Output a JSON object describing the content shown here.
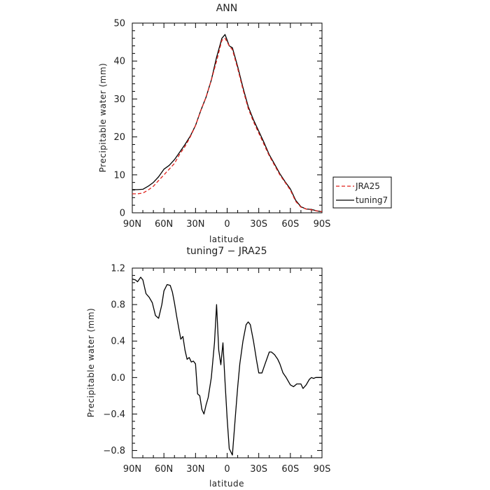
{
  "chart_data": [
    {
      "type": "line",
      "title": "ANN",
      "xlabel": "latitude",
      "ylabel": "Precipitable water (mm)",
      "xticks": [
        "90N",
        "60N",
        "30N",
        "0",
        "30S",
        "60S",
        "90S"
      ],
      "yticks": [
        "0",
        "10",
        "20",
        "30",
        "40",
        "50"
      ],
      "ylim": [
        0,
        50
      ],
      "legend_position": "right-of-plot",
      "series": [
        {
          "name": "JRA25",
          "color": "#e0201b",
          "dash": "dashed",
          "x": [
            90,
            85,
            80,
            75,
            70,
            65,
            60,
            55,
            50,
            45,
            40,
            35,
            30,
            25,
            20,
            15,
            10,
            5,
            2,
            0,
            -2,
            -5,
            -10,
            -15,
            -20,
            -25,
            -30,
            -35,
            -40,
            -45,
            -50,
            -55,
            -60,
            -65,
            -70,
            -75,
            -80,
            -85,
            -90
          ],
          "y": [
            5.0,
            5.0,
            5.2,
            6.0,
            7.0,
            8.5,
            10.0,
            11.5,
            13.0,
            15.5,
            17.5,
            20.0,
            23.0,
            27.0,
            30.5,
            35.0,
            40.0,
            45.5,
            46.0,
            45.0,
            44.0,
            43.0,
            38.0,
            32.5,
            27.5,
            24.0,
            21.0,
            18.0,
            15.0,
            12.5,
            10.0,
            8.0,
            6.0,
            3.0,
            1.5,
            1.0,
            0.8,
            0.5,
            0.3
          ]
        },
        {
          "name": "tuning7",
          "color": "#000000",
          "dash": "solid",
          "x": [
            90,
            85,
            80,
            75,
            70,
            65,
            60,
            55,
            50,
            45,
            40,
            35,
            30,
            25,
            20,
            15,
            10,
            5,
            2,
            0,
            -2,
            -5,
            -10,
            -15,
            -20,
            -25,
            -30,
            -35,
            -40,
            -45,
            -50,
            -55,
            -60,
            -65,
            -70,
            -75,
            -80,
            -85,
            -90
          ],
          "y": [
            6.1,
            6.1,
            6.2,
            7.0,
            8.0,
            9.5,
            11.5,
            12.5,
            14.0,
            16.0,
            18.0,
            20.2,
            23.0,
            27.0,
            30.5,
            35.0,
            41.0,
            46.0,
            47.0,
            45.5,
            44.0,
            43.5,
            38.5,
            33.0,
            28.0,
            24.5,
            21.5,
            18.5,
            15.3,
            12.8,
            10.3,
            8.2,
            6.3,
            3.3,
            1.6,
            1.0,
            0.9,
            0.5,
            0.3
          ]
        }
      ]
    },
    {
      "type": "line",
      "title": "tuning7 − JRA25",
      "xlabel": "latitude",
      "ylabel": "Precipitable water (mm)",
      "xticks": [
        "90N",
        "60N",
        "30N",
        "0",
        "30S",
        "60S",
        "90S"
      ],
      "yticks": [
        "−0.8",
        "−0.4",
        "0.0",
        "0.4",
        "0.8",
        "1.2"
      ],
      "ylim": [
        -0.88,
        1.2
      ],
      "series": [
        {
          "color": "#000000",
          "dash": "solid",
          "x": [
            90,
            87,
            85,
            82,
            80,
            77,
            74,
            71,
            68,
            65,
            62,
            60,
            57,
            54,
            52,
            50,
            48,
            46,
            44,
            42,
            40,
            38,
            36,
            34,
            32,
            30,
            28,
            26,
            24,
            22,
            20,
            18,
            15,
            12,
            10,
            8,
            6,
            4,
            2,
            0,
            -2,
            -5,
            -8,
            -10,
            -12,
            -15,
            -18,
            -20,
            -22,
            -25,
            -28,
            -30,
            -33,
            -36,
            -40,
            -42,
            -45,
            -48,
            -50,
            -53,
            -56,
            -60,
            -63,
            -66,
            -70,
            -72,
            -75,
            -78,
            -80,
            -82,
            -84,
            -86,
            -88,
            -90
          ],
          "y": [
            1.08,
            1.07,
            1.05,
            1.1,
            1.07,
            0.92,
            0.88,
            0.82,
            0.68,
            0.65,
            0.8,
            0.95,
            1.02,
            1.01,
            0.94,
            0.82,
            0.68,
            0.55,
            0.42,
            0.45,
            0.3,
            0.2,
            0.22,
            0.17,
            0.18,
            0.15,
            -0.18,
            -0.2,
            -0.35,
            -0.4,
            -0.3,
            -0.22,
            0.0,
            0.38,
            0.8,
            0.3,
            0.14,
            0.38,
            -0.05,
            -0.45,
            -0.78,
            -0.85,
            -0.4,
            -0.1,
            0.15,
            0.4,
            0.58,
            0.61,
            0.58,
            0.4,
            0.18,
            0.05,
            0.05,
            0.15,
            0.28,
            0.28,
            0.25,
            0.2,
            0.15,
            0.05,
            0.0,
            -0.08,
            -0.1,
            -0.07,
            -0.07,
            -0.12,
            -0.08,
            -0.02,
            0.0,
            -0.01,
            0.0,
            0.0,
            0.0,
            0.0
          ]
        }
      ]
    }
  ]
}
